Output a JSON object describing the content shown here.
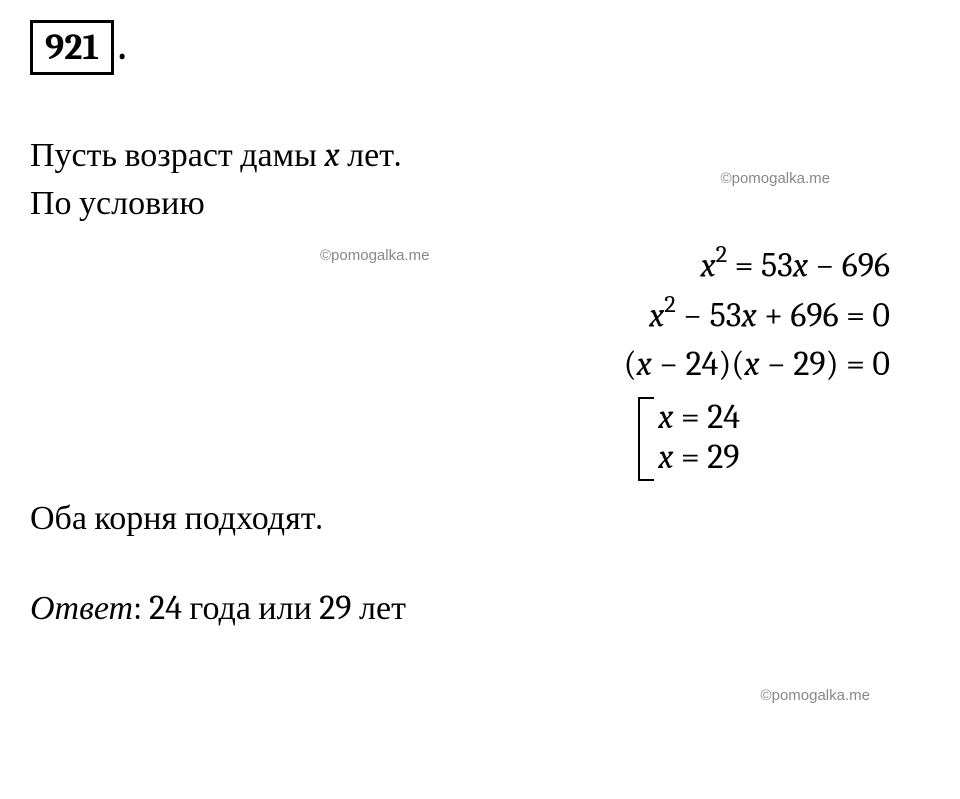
{
  "problem": {
    "number": "921",
    "text_line1_prefix": "Пусть возраст дамы ",
    "text_line1_var": "x",
    "text_line1_suffix": " лет.",
    "text_line2": "По условию"
  },
  "equations": {
    "eq1_lhs_var": "x",
    "eq1_lhs_exp": "2",
    "eq1_rhs": " = 53",
    "eq1_rhs_var": "x",
    "eq1_rhs_const": " − 696",
    "eq2_var1": "x",
    "eq2_exp": "2",
    "eq2_mid": " − 53",
    "eq2_var2": "x",
    "eq2_const": " + 696 = 0",
    "eq3_open": "(",
    "eq3_var1": "x",
    "eq3_mid1": " − 24)(",
    "eq3_var2": "x",
    "eq3_mid2": " − 29) = 0",
    "sol1_var": "x",
    "sol1_eq": " = 24",
    "sol2_var": "x",
    "sol2_eq": " = 29"
  },
  "conclusion": "Оба корня подходят.",
  "answer": {
    "label": "Ответ",
    "text": ": 24 года или 29 лет"
  },
  "watermark": "©pomogalka.me",
  "colors": {
    "text": "#000000",
    "background": "#ffffff",
    "watermark": "#888888"
  },
  "typography": {
    "body_fontsize": 34,
    "number_fontsize": 36,
    "watermark_fontsize": 15
  }
}
